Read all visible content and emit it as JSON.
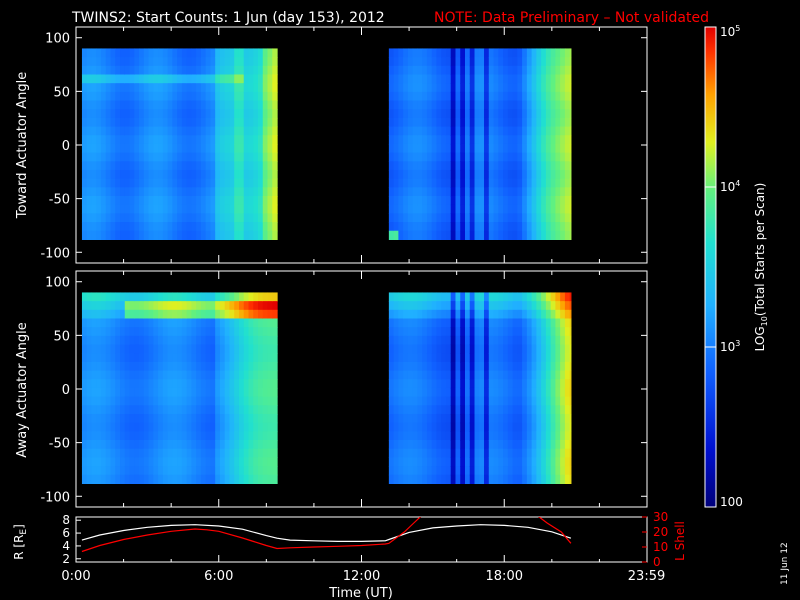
{
  "header": {
    "title": "TWINS2: Start Counts:  1 Jun (day 153), 2012",
    "note": "NOTE: Data Preliminary – Not validated",
    "note_color": "#ff0000"
  },
  "side_stamp": "11 Jun 12",
  "chart_data": [
    {
      "type": "heatmap",
      "id": "toward",
      "ylabel": "Toward Actuator Angle",
      "xlim": [
        0,
        24
      ],
      "ylim": [
        -110,
        110
      ],
      "yticks": [
        "100",
        "50",
        "0",
        "-50",
        "-100"
      ],
      "ytick_values": [
        100,
        50,
        0,
        -50,
        -100
      ],
      "data_coverage_hours": [
        [
          0.25,
          8.45
        ],
        [
          13.15,
          20.8
        ]
      ],
      "data_angle_range": [
        -88,
        90
      ]
    },
    {
      "type": "heatmap",
      "id": "away",
      "ylabel": "Away Actuator Angle",
      "xlim": [
        0,
        24
      ],
      "ylim": [
        -110,
        110
      ],
      "yticks": [
        "100",
        "50",
        "0",
        "-50",
        "-100"
      ],
      "ytick_values": [
        100,
        50,
        0,
        -50,
        -100
      ],
      "data_coverage_hours": [
        [
          0.25,
          8.45
        ],
        [
          13.15,
          20.8
        ]
      ],
      "data_angle_range": [
        -88,
        90
      ]
    },
    {
      "type": "line",
      "id": "ephemeris",
      "xlabel": "Time (UT)",
      "xticks": [
        "0:00",
        "6:00",
        "12:00",
        "18:00",
        "23:59"
      ],
      "xtick_values": [
        0,
        6,
        12,
        18,
        23.98
      ],
      "ylabel_left": "R [R",
      "ylabel_left_sub": "E",
      "ylabel_left_end": "]",
      "ylabel_right": "L Shell",
      "left_ylim": [
        1.5,
        8.5
      ],
      "left_yticks": [
        "8",
        "6",
        "4",
        "2"
      ],
      "left_ytick_values": [
        8,
        6,
        4,
        2
      ],
      "right_ylim": [
        0,
        30
      ],
      "right_yticks": [
        "30",
        "20",
        "10",
        "0"
      ],
      "right_ytick_values": [
        30,
        20,
        10,
        0
      ],
      "series": [
        {
          "axis": "left",
          "color": "#ffffff",
          "x": [
            0.25,
            1,
            2,
            3,
            4,
            5,
            6,
            7,
            8,
            8.45,
            9,
            10,
            11,
            12,
            13,
            13.15,
            14,
            15,
            16,
            17,
            18,
            19,
            20,
            20.8
          ],
          "y": [
            4.9,
            5.7,
            6.4,
            6.9,
            7.2,
            7.3,
            7.1,
            6.6,
            5.6,
            5.2,
            4.9,
            4.8,
            4.7,
            4.7,
            4.8,
            5.0,
            6.1,
            6.8,
            7.1,
            7.3,
            7.2,
            6.9,
            6.2,
            5.2
          ]
        },
        {
          "axis": "right",
          "color": "#ff0000",
          "x": [
            0.25,
            1,
            2,
            3,
            4,
            5,
            5.5,
            6,
            7,
            8,
            8.45,
            9,
            10,
            11,
            12,
            13,
            13.15,
            13.8,
            14.2,
            14.6,
            19.3,
            19.8,
            20.4,
            20.8
          ],
          "y": [
            7,
            11,
            15,
            18,
            20.5,
            22,
            21.5,
            20.5,
            16,
            11,
            9,
            9.5,
            10,
            10.5,
            11,
            12,
            12.5,
            20,
            26,
            32,
            32,
            26,
            20,
            12.5
          ]
        }
      ]
    }
  ],
  "colorbar": {
    "label_pre": "LOG",
    "label_sub": "10",
    "label_post": "(Total Starts per Scan)",
    "ticks": [
      "10",
      "10",
      "10",
      "100"
    ],
    "tick_exps": [
      "5",
      "4",
      "3",
      ""
    ],
    "tick_log_values": [
      5,
      4,
      3,
      2
    ],
    "range_log": [
      2,
      5
    ]
  }
}
